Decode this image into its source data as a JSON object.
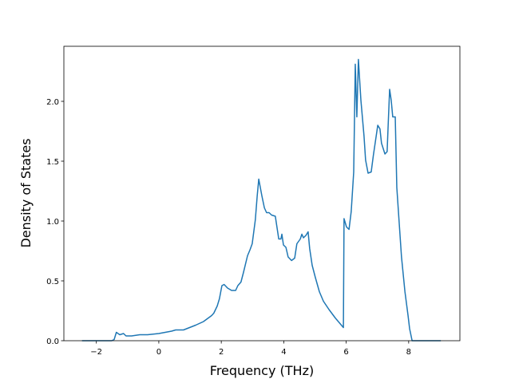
{
  "chart_data": {
    "type": "line",
    "xlabel": "Frequency (THz)",
    "ylabel": "Density of States",
    "x": [
      -2.46,
      -1.51,
      -1.43,
      -1.36,
      -1.25,
      -1.13,
      -1.05,
      -0.87,
      -0.61,
      -0.36,
      0,
      0.41,
      0.54,
      0.79,
      1.18,
      1.43,
      1.69,
      1.76,
      1.87,
      1.94,
      2.02,
      2.09,
      2.2,
      2.33,
      2.46,
      2.53,
      2.63,
      2.71,
      2.84,
      2.92,
      2.99,
      3.09,
      3.15,
      3.2,
      3.3,
      3.38,
      3.45,
      3.53,
      3.61,
      3.73,
      3.84,
      3.91,
      3.94,
      3.99,
      4.07,
      4.14,
      4.25,
      4.35,
      4.42,
      4.53,
      4.58,
      4.63,
      4.71,
      4.78,
      4.83,
      4.91,
      5.01,
      5.14,
      5.27,
      5.45,
      5.65,
      5.78,
      5.91,
      5.93,
      6.01,
      6.09,
      6.16,
      6.24,
      6.29,
      6.34,
      6.39,
      6.47,
      6.57,
      6.62,
      6.7,
      6.8,
      6.87,
      6.96,
      7.01,
      7.08,
      7.13,
      7.24,
      7.31,
      7.34,
      7.39,
      7.44,
      7.49,
      7.57,
      7.62,
      7.7,
      7.77,
      7.88,
      7.98,
      8.03,
      8.11,
      9.03
    ],
    "series": [
      {
        "color": "#1f77b4",
        "values": [
          0,
          0,
          0.01,
          0.07,
          0.05,
          0.06,
          0.04,
          0.04,
          0.05,
          0.05,
          0.06,
          0.08,
          0.09,
          0.09,
          0.13,
          0.16,
          0.21,
          0.23,
          0.29,
          0.35,
          0.46,
          0.47,
          0.44,
          0.42,
          0.42,
          0.46,
          0.49,
          0.57,
          0.71,
          0.76,
          0.81,
          1.01,
          1.21,
          1.35,
          1.21,
          1.11,
          1.07,
          1.07,
          1.05,
          1.04,
          0.85,
          0.85,
          0.89,
          0.8,
          0.78,
          0.7,
          0.67,
          0.69,
          0.81,
          0.85,
          0.89,
          0.86,
          0.88,
          0.91,
          0.77,
          0.63,
          0.53,
          0.41,
          0.33,
          0.26,
          0.19,
          0.15,
          0.11,
          1.02,
          0.95,
          0.93,
          1.08,
          1.41,
          2.31,
          1.87,
          2.35,
          2.01,
          1.71,
          1.51,
          1.4,
          1.41,
          1.55,
          1.71,
          1.8,
          1.77,
          1.65,
          1.56,
          1.58,
          1.78,
          2.1,
          2.01,
          1.87,
          1.87,
          1.28,
          0.97,
          0.7,
          0.41,
          0.21,
          0.1,
          0,
          0
        ]
      }
    ],
    "xlim": [
      -3.04,
      9.64
    ],
    "ylim": [
      0,
      2.46
    ],
    "xticks": [
      {
        "value": -2,
        "label": "−2"
      },
      0,
      2,
      4,
      6,
      8
    ],
    "yticks": [
      {
        "value": 0,
        "label": "0.0"
      },
      0.5,
      {
        "value": 1,
        "label": "1.0"
      },
      1.5,
      {
        "value": 2,
        "label": "2.0"
      }
    ]
  }
}
